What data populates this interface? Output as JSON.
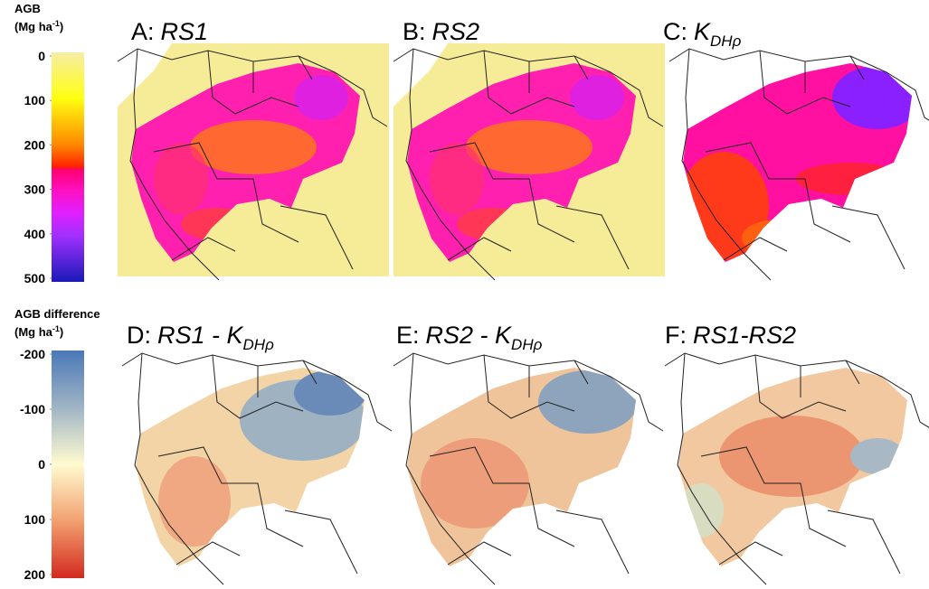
{
  "colorbars": [
    {
      "title": "AGB",
      "unit": "(Mg ha",
      "unit_sup": "-1",
      "unit_end": ")",
      "range": [
        0,
        500
      ],
      "ticks": [
        0,
        100,
        200,
        300,
        400,
        500
      ]
    },
    {
      "title": "AGB difference",
      "unit": "(Mg ha",
      "unit_sup": "-1",
      "unit_end": ")",
      "range": [
        -200,
        200
      ],
      "ticks": [
        -200,
        -100,
        0,
        100,
        200
      ]
    }
  ],
  "panels": [
    {
      "letter": "A:",
      "text": "RS1"
    },
    {
      "letter": "B:",
      "text": "RS2"
    },
    {
      "letter": "C:",
      "text": "K",
      "sub": "DHρ"
    },
    {
      "letter": "D:",
      "text": "RS1 - K",
      "sub": "DHρ"
    },
    {
      "letter": "E:",
      "text": "RS2 - K",
      "sub": "DHρ"
    },
    {
      "letter": "F:",
      "text": "RS1-RS2"
    }
  ]
}
